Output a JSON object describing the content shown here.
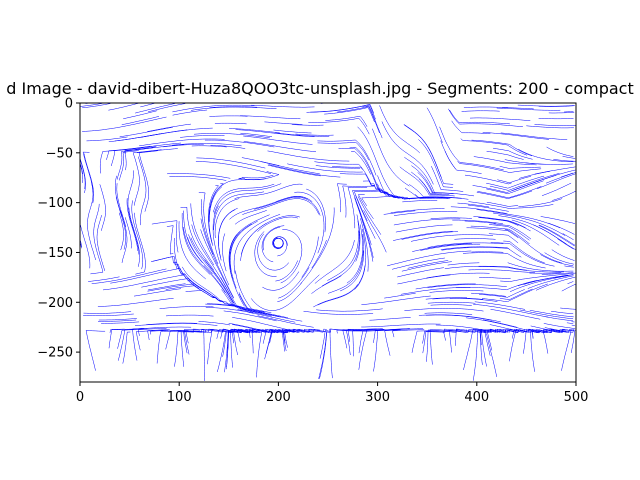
{
  "chart_data": {
    "type": "streamplot",
    "title": "d Image - david-dibert-Huza8QOO3tc-unsplash.jpg - Segments: 200 - compact",
    "xlabel": "",
    "ylabel": "",
    "xlim": [
      0,
      500
    ],
    "ylim": [
      -280,
      0
    ],
    "x_ticks": [
      0,
      100,
      200,
      300,
      400,
      500
    ],
    "y_ticks": [
      0,
      -50,
      -100,
      -150,
      -200,
      -250
    ],
    "x_tick_labels": [
      "0",
      "100",
      "200",
      "300",
      "400",
      "500"
    ],
    "y_tick_labels": [
      "0",
      "−50",
      "−100",
      "−150",
      "−200",
      "−250"
    ],
    "line_color": "#0000ff",
    "grid": false
  }
}
